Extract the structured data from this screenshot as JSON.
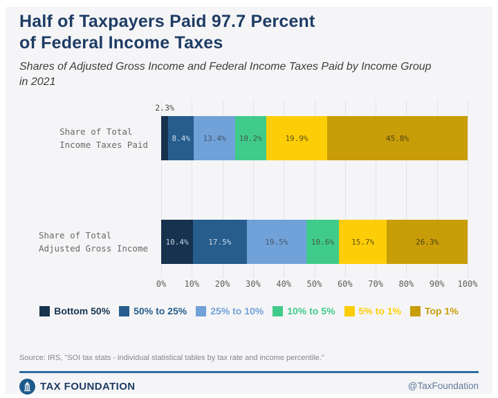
{
  "header": {
    "title_lines": [
      "Half of Taxpayers Paid 97.7 Percent",
      "of Federal Income Taxes"
    ],
    "subtitle_lines": [
      "Shares of Adjusted Gross Income and Federal Income Taxes Paid by Income Group",
      "in 2021"
    ]
  },
  "chart_data": {
    "type": "bar",
    "orientation": "horizontal",
    "stacked": true,
    "title": "Half of Taxpayers Paid 97.7 Percent of Federal Income Taxes",
    "subtitle": "Shares of Adjusted Gross Income and Federal Income Taxes Paid by Income Group in 2021",
    "categories": [
      "Share of Total Income Taxes Paid",
      "Share of Total Adjusted Gross Income"
    ],
    "category_lines": [
      [
        "Share of Total",
        "Income Taxes Paid"
      ],
      [
        "Share of Total",
        "Adjusted Gross Income"
      ]
    ],
    "series": [
      {
        "name": "Bottom 50%",
        "color": "#16324f",
        "label_color": "#c6d3e0",
        "values": [
          2.3,
          10.4
        ]
      },
      {
        "name": "50% to 25%",
        "color": "#265d8d",
        "label_color": "#cfdde9",
        "values": [
          8.4,
          17.5
        ]
      },
      {
        "name": "25% to 10%",
        "color": "#71a1d9",
        "label_color": "#44546a",
        "values": [
          13.4,
          19.5
        ]
      },
      {
        "name": "10% to 5%",
        "color": "#40cb8a",
        "label_color": "#3e5a4a",
        "values": [
          10.2,
          10.6
        ]
      },
      {
        "name": "5% to 1%",
        "color": "#fdce07",
        "label_color": "#5d4f14",
        "values": [
          19.9,
          15.7
        ]
      },
      {
        "name": "Top 1%",
        "color": "#c89d08",
        "label_color": "#4f430e",
        "values": [
          45.8,
          26.3
        ]
      }
    ],
    "value_suffix": "%",
    "x_ticks": [
      "0%",
      "10%",
      "20%",
      "30%",
      "40%",
      "50%",
      "60%",
      "70%",
      "80%",
      "90%",
      "100%"
    ],
    "xlim": [
      0,
      100
    ],
    "grid": true,
    "legend_position": "bottom"
  },
  "footer": {
    "source": "Source: IRS, \"SOI tax stats - individual statistical tables by tax rate and income percentile.\"",
    "brand": "TAX FOUNDATION",
    "handle": "@TaxFoundation"
  },
  "colors": {
    "background": "#f5f5f7",
    "title": "#1e3c64",
    "divider": "#2e6da4",
    "gridline": "#e3e3e7"
  }
}
